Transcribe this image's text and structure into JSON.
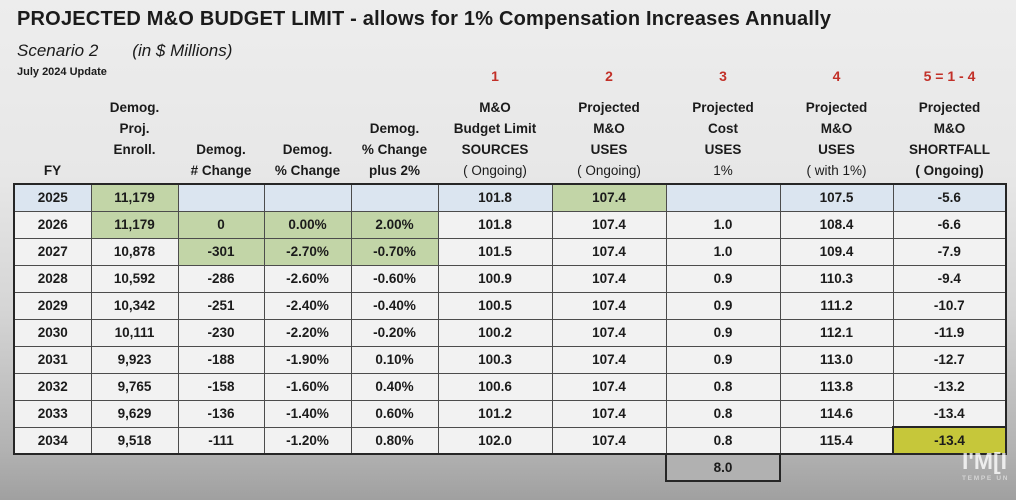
{
  "page": {
    "title": "PROJECTED M&O BUDGET LIMIT - allows for 1% Compensation Increases Annually",
    "scenario": "Scenario 2",
    "units": "(in $ Millions)",
    "update_note": "July 2024 Update"
  },
  "watermark": {
    "line1": "I'M[I",
    "line2": "TEMPE UN"
  },
  "colors": {
    "highlight_green": "#c2d5a7",
    "highlight_blue": "#dbe5f0",
    "highlight_yellow": "#c6c73a",
    "footer_gray": "#b1b1b1",
    "header_number_red": "#c23028"
  },
  "table": {
    "columns": [
      {
        "id": "fy",
        "num": "",
        "lines": [
          {
            "t": "FY"
          }
        ]
      },
      {
        "id": "enroll",
        "num": "",
        "lines": [
          {
            "t": "Demog."
          },
          {
            "t": "Proj."
          },
          {
            "t": "Enroll."
          }
        ]
      },
      {
        "id": "num-change",
        "num": "",
        "lines": [
          {
            "t": "Demog."
          },
          {
            "t": "# Change"
          }
        ]
      },
      {
        "id": "pct-change",
        "num": "",
        "lines": [
          {
            "t": "Demog."
          },
          {
            "t": "% Change"
          }
        ]
      },
      {
        "id": "pct-change-plus2",
        "num": "",
        "lines": [
          {
            "t": "Demog."
          },
          {
            "t": "% Change"
          },
          {
            "t": "plus 2%"
          }
        ]
      },
      {
        "id": "sources",
        "num": "1",
        "lines": [
          {
            "t": "M&O"
          },
          {
            "t": "Budget Limit"
          },
          {
            "t": "SOURCES"
          },
          {
            "t": "( Ongoing)",
            "light": true
          }
        ]
      },
      {
        "id": "uses",
        "num": "2",
        "lines": [
          {
            "t": "Projected"
          },
          {
            "t": "M&O"
          },
          {
            "t": "USES"
          },
          {
            "t": "( Ongoing)",
            "light": true
          }
        ]
      },
      {
        "id": "cost-uses",
        "num": "3",
        "lines": [
          {
            "t": "Projected"
          },
          {
            "t": "Cost"
          },
          {
            "t": "USES"
          },
          {
            "t": "1%",
            "light": true
          }
        ]
      },
      {
        "id": "uses-with-1pct",
        "num": "4",
        "lines": [
          {
            "t": "Projected"
          },
          {
            "t": "M&O"
          },
          {
            "t": "USES"
          },
          {
            "t": "( with 1%)",
            "light": true
          }
        ]
      },
      {
        "id": "shortfall",
        "num": "5 = 1 - 4",
        "lines": [
          {
            "t": "Projected"
          },
          {
            "t": "M&O"
          },
          {
            "t": "SHORTFALL"
          },
          {
            "t": "( Ongoing)"
          }
        ]
      }
    ],
    "rows": [
      {
        "cells": [
          "2025",
          "11,179",
          "",
          "",
          "",
          "101.8",
          "107.4",
          "",
          "107.5",
          "-5.6"
        ],
        "cell_bg": [
          "blue",
          "green",
          "blue",
          "blue",
          "blue",
          "blue",
          "green",
          "blue",
          "blue",
          "blue"
        ]
      },
      {
        "cells": [
          "2026",
          "11,179",
          "0",
          "0.00%",
          "2.00%",
          "101.8",
          "107.4",
          "1.0",
          "108.4",
          "-6.6"
        ],
        "cell_bg": [
          null,
          "green",
          "green",
          "green",
          "green",
          null,
          null,
          null,
          null,
          null
        ]
      },
      {
        "cells": [
          "2027",
          "10,878",
          "-301",
          "-2.70%",
          "-0.70%",
          "101.5",
          "107.4",
          "1.0",
          "109.4",
          "-7.9"
        ],
        "cell_bg": [
          null,
          null,
          "green",
          "green",
          "green",
          null,
          null,
          null,
          null,
          null
        ]
      },
      {
        "cells": [
          "2028",
          "10,592",
          "-286",
          "-2.60%",
          "-0.60%",
          "100.9",
          "107.4",
          "0.9",
          "110.3",
          "-9.4"
        ]
      },
      {
        "cells": [
          "2029",
          "10,342",
          "-251",
          "-2.40%",
          "-0.40%",
          "100.5",
          "107.4",
          "0.9",
          "111.2",
          "-10.7"
        ]
      },
      {
        "cells": [
          "2030",
          "10,111",
          "-230",
          "-2.20%",
          "-0.20%",
          "100.2",
          "107.4",
          "0.9",
          "112.1",
          "-11.9"
        ]
      },
      {
        "cells": [
          "2031",
          "9,923",
          "-188",
          "-1.90%",
          "0.10%",
          "100.3",
          "107.4",
          "0.9",
          "113.0",
          "-12.7"
        ]
      },
      {
        "cells": [
          "2032",
          "9,765",
          "-158",
          "-1.60%",
          "0.40%",
          "100.6",
          "107.4",
          "0.8",
          "113.8",
          "-13.2"
        ]
      },
      {
        "cells": [
          "2033",
          "9,629",
          "-136",
          "-1.40%",
          "0.60%",
          "101.2",
          "107.4",
          "0.8",
          "114.6",
          "-13.4"
        ]
      },
      {
        "cells": [
          "2034",
          "9,518",
          "-111",
          "-1.20%",
          "0.80%",
          "102.0",
          "107.4",
          "0.8",
          "115.4",
          "-13.4"
        ],
        "cell_bg": [
          null,
          null,
          null,
          null,
          null,
          null,
          null,
          null,
          null,
          "yellow"
        ]
      }
    ],
    "footer": {
      "value": "8.0",
      "col_index": 7
    }
  }
}
